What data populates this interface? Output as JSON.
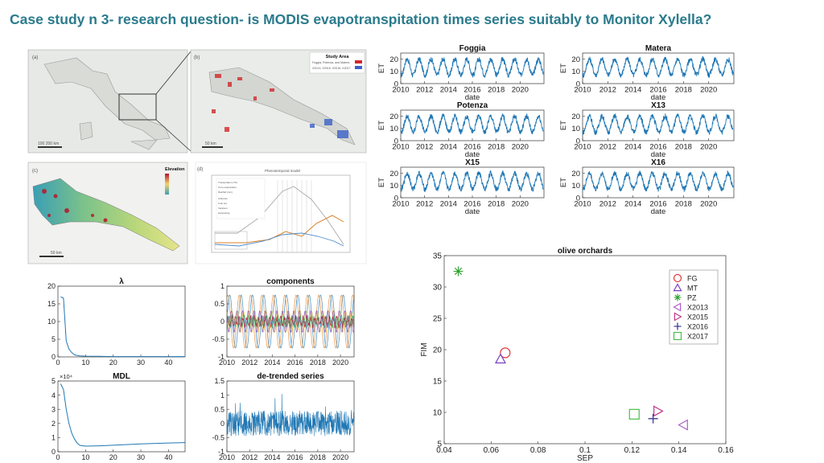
{
  "title": "Case study n 3- research question- is MODIS evapotranspitation times series suitably to Monitor Xylella?",
  "maps": {
    "panel_a": {
      "letter": "(a)",
      "scale": "100  200 km"
    },
    "panel_b": {
      "letter": "(b)",
      "legend_title": "Study Area",
      "legend_item1": "Foggia, Potenza, and Matera",
      "legend_item2": "X2013, X2015, X2016, X2017",
      "scale": "50 km"
    },
    "panel_c": {
      "letter": "(c)",
      "legend_title": "Elevation",
      "scale": "50 km"
    },
    "panel_d": {
      "letter": "(d)",
      "title": "Phenotemporal model",
      "legend": [
        "Transpiration (TC)",
        "Crop evaporation",
        "Rainfall (mm)",
        "Anthesis",
        "Fruit set",
        "Veraison",
        "Harvesting"
      ]
    }
  },
  "colors": {
    "series": "#1f77b4",
    "red": "#e0383b",
    "purple": "#7a3fbf",
    "green": "#2ca02c",
    "orange": "#d9822b"
  },
  "chart_data": [
    {
      "type": "line",
      "title": "Foggia",
      "xlabel": "date",
      "ylabel": "ET",
      "xlim": [
        2010,
        2022
      ],
      "ylim": [
        0,
        25
      ],
      "xticks": [
        "2010",
        "2012",
        "2014",
        "2016",
        "2018",
        "2020"
      ],
      "yticks": [
        "0",
        "10",
        "20"
      ],
      "description": "seasonal ET series, 12 annual cycles, range ~6-22"
    },
    {
      "type": "line",
      "title": "Matera",
      "xlabel": "date",
      "ylabel": "ET",
      "xlim": [
        2010,
        2022
      ],
      "ylim": [
        0,
        25
      ],
      "xticks": [
        "2010",
        "2012",
        "2014",
        "2016",
        "2018",
        "2020"
      ],
      "yticks": [
        "0",
        "10",
        "20"
      ]
    },
    {
      "type": "line",
      "title": "Potenza",
      "xlabel": "date",
      "ylabel": "ET",
      "xlim": [
        2010,
        2022
      ],
      "ylim": [
        0,
        25
      ],
      "xticks": [
        "2010",
        "2012",
        "2014",
        "2016",
        "2018",
        "2020"
      ],
      "yticks": [
        "0",
        "10",
        "20"
      ]
    },
    {
      "type": "line",
      "title": "X13",
      "xlabel": "date",
      "ylabel": "ET",
      "xlim": [
        2010,
        2022
      ],
      "ylim": [
        0,
        25
      ],
      "xticks": [
        "2010",
        "2012",
        "2014",
        "2016",
        "2018",
        "2020"
      ],
      "yticks": [
        "0",
        "10",
        "20"
      ]
    },
    {
      "type": "line",
      "title": "X15",
      "xlabel": "date",
      "ylabel": "ET",
      "xlim": [
        2010,
        2022
      ],
      "ylim": [
        0,
        25
      ],
      "xticks": [
        "2010",
        "2012",
        "2014",
        "2016",
        "2018",
        "2020"
      ],
      "yticks": [
        "0",
        "10",
        "20"
      ]
    },
    {
      "type": "line",
      "title": "X16",
      "xlabel": "date",
      "ylabel": "ET",
      "xlim": [
        2010,
        2022
      ],
      "ylim": [
        0,
        25
      ],
      "xticks": [
        "2010",
        "2012",
        "2014",
        "2016",
        "2018",
        "2020"
      ],
      "yticks": [
        "0",
        "10",
        "20"
      ]
    },
    {
      "type": "line",
      "title": "λ",
      "xlim": [
        0,
        46
      ],
      "ylim": [
        0,
        20
      ],
      "xticks": [
        "0",
        "10",
        "20",
        "30",
        "40"
      ],
      "yticks": [
        "0",
        "5",
        "10",
        "15",
        "20"
      ],
      "x": [
        1,
        2,
        3,
        4,
        5,
        6,
        7,
        8,
        10,
        15,
        20,
        30,
        40,
        46
      ],
      "values": [
        17,
        16.6,
        4.5,
        2.2,
        1.2,
        0.6,
        0.4,
        0.3,
        0.2,
        0.15,
        0.1,
        0.1,
        0.1,
        0.1
      ]
    },
    {
      "type": "line",
      "title": "components",
      "xlim": [
        2010,
        2021.2
      ],
      "ylim": [
        -1,
        1
      ],
      "xticks": [
        "2010",
        "2012",
        "2014",
        "2016",
        "2018",
        "2020"
      ],
      "yticks": [
        "-1",
        "-0.5",
        "0",
        "0.5",
        "1"
      ]
    },
    {
      "type": "line",
      "title": "MDL",
      "exponent": "×10⁴",
      "xlim": [
        0,
        46
      ],
      "ylim": [
        0,
        5
      ],
      "xticks": [
        "0",
        "10",
        "20",
        "30",
        "40"
      ],
      "yticks": [
        "0",
        "1",
        "2",
        "3",
        "4",
        "5"
      ],
      "x": [
        1,
        2,
        3,
        4,
        5,
        6,
        7,
        8,
        10,
        15,
        20,
        30,
        40,
        46
      ],
      "values": [
        4.8,
        4.4,
        3.0,
        2.0,
        1.3,
        0.9,
        0.6,
        0.45,
        0.4,
        0.42,
        0.46,
        0.55,
        0.62,
        0.65
      ]
    },
    {
      "type": "line",
      "title": "de-trended series",
      "xlim": [
        2010,
        2021.2
      ],
      "ylim": [
        -1,
        1.5
      ],
      "xticks": [
        "2010",
        "2012",
        "2014",
        "2016",
        "2018",
        "2020"
      ],
      "yticks": [
        "-1",
        "-0.5",
        "0",
        "0.5",
        "1",
        "1.5"
      ]
    },
    {
      "type": "scatter",
      "title": "olive orchards",
      "xlabel": "SEP",
      "ylabel": "FIM",
      "xlim": [
        0.04,
        0.16
      ],
      "ylim": [
        5,
        35
      ],
      "xticks": [
        "0.04",
        "0.06",
        "0.08",
        "0.1",
        "0.12",
        "0.14",
        "0.16"
      ],
      "yticks": [
        "5",
        "10",
        "15",
        "20",
        "25",
        "30",
        "35"
      ],
      "legend_position": "top-right",
      "series": [
        {
          "name": "FG",
          "marker": "circle",
          "color": "#e0383b",
          "x": [
            0.066
          ],
          "y": [
            19.5
          ]
        },
        {
          "name": "MT",
          "marker": "triangle-up",
          "color": "#7a3fbf",
          "x": [
            0.064
          ],
          "y": [
            18.5
          ]
        },
        {
          "name": "PZ",
          "marker": "asterisk",
          "color": "#2ca02c",
          "x": [
            0.046
          ],
          "y": [
            32.5
          ]
        },
        {
          "name": "X2013",
          "marker": "triangle-left",
          "color": "#b05fc8",
          "x": [
            0.142
          ],
          "y": [
            8.0
          ]
        },
        {
          "name": "X2015",
          "marker": "triangle-right",
          "color": "#c0398a",
          "x": [
            0.131
          ],
          "y": [
            10.2
          ]
        },
        {
          "name": "X2016",
          "marker": "plus",
          "color": "#3d3a8f",
          "x": [
            0.129
          ],
          "y": [
            9.0
          ]
        },
        {
          "name": "X2017",
          "marker": "square",
          "color": "#4cbf4c",
          "x": [
            0.121
          ],
          "y": [
            9.7
          ]
        }
      ]
    }
  ]
}
